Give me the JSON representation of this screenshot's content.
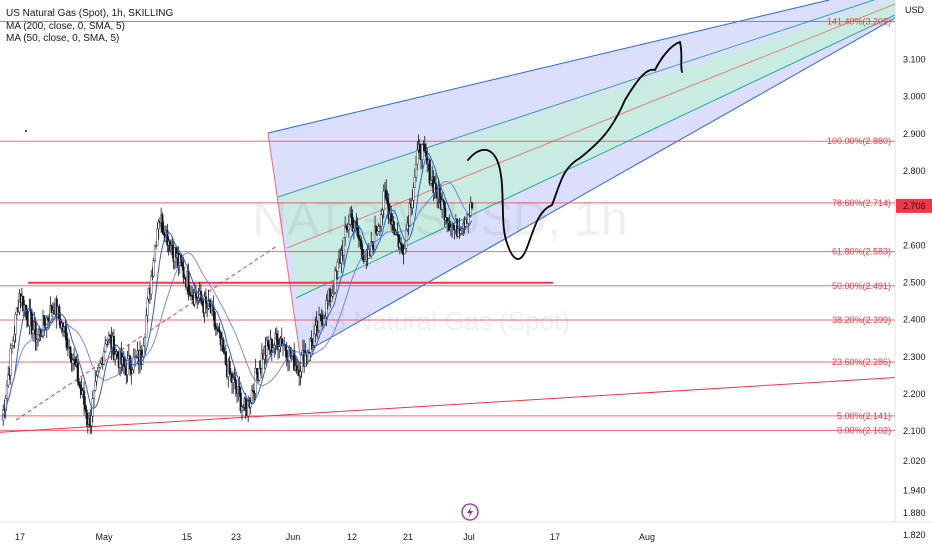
{
  "legend": {
    "title": "US Natural Gas (Spot), 1h, SKILLING",
    "ma200": "MA (200, close, 0, SMA, 5)",
    "ma50": "MA (50, close, 0, SMA, 5)"
  },
  "watermark": {
    "symbol": "NATGASUSD, 1h",
    "name": "US Natural Gas (Spot)"
  },
  "currency_label": "USD",
  "colors": {
    "fib_line": "#f23645",
    "channel_line": "#2962ff",
    "channel_fill_outer": "#d7dcfb",
    "channel_fill_inner": "#c7ecdf",
    "price_badge": "#f23645",
    "ma_line": "#2f5fd0",
    "candle": "#131722",
    "drawing": "#000000"
  },
  "chart_data": {
    "type": "line",
    "title": "US Natural Gas (Spot), 1h, SKILLING",
    "yaxis": {
      "min": 1.78,
      "max": 3.26,
      "unit": "USD",
      "ticks": [
        "3.100",
        "3.000",
        "2.900",
        "2.800",
        "2.700",
        "2.600",
        "2.500",
        "2.400",
        "2.300",
        "2.200",
        "2.100",
        "2.020",
        "1.940",
        "1.880",
        "1.820"
      ]
    },
    "xaxis": {
      "tick_labels": [
        "17",
        "May",
        "15",
        "23",
        "Jun",
        "12",
        "21",
        "Jul",
        "17",
        "Aug"
      ]
    },
    "current_price": "2.706",
    "fib_levels": [
      {
        "label": "141.40%(3.202)",
        "value": 3.202
      },
      {
        "label": "100.00%(2.880)",
        "value": 2.88
      },
      {
        "label": "78.60%(2.714)",
        "value": 2.714
      },
      {
        "label": "61.80%(2.583)",
        "value": 2.583
      },
      {
        "label": "50.00%(2.491)",
        "value": 2.491
      },
      {
        "label": "38.20%(2.399)",
        "value": 2.399
      },
      {
        "label": "23.60%(2.286)",
        "value": 2.286
      },
      {
        "label": "5.00%(2.141)",
        "value": 2.141
      },
      {
        "label": "0.00%(2.102)",
        "value": 2.102
      }
    ],
    "series": [
      {
        "name": "US Natural Gas (Spot)",
        "x": [
          "Apr 17",
          "Apr 21",
          "Apr 25",
          "Apr 29",
          "May 1",
          "May 5",
          "May 9",
          "May 13",
          "May 15",
          "May 19",
          "May 21",
          "May 23",
          "May 26",
          "May 30",
          "Jun 1",
          "Jun 4",
          "Jun 8",
          "Jun 10",
          "Jun 12",
          "Jun 14",
          "Jun 17",
          "Jun 19",
          "Jun 21",
          "Jun 23",
          "Jun 25",
          "Jun 27",
          "Jun 29",
          "Jul 1"
        ],
        "values": [
          2.13,
          2.47,
          2.35,
          2.44,
          2.31,
          2.12,
          2.36,
          2.27,
          2.3,
          2.68,
          2.57,
          2.47,
          2.42,
          2.26,
          2.15,
          2.31,
          2.35,
          2.27,
          2.36,
          2.48,
          2.68,
          2.55,
          2.73,
          2.58,
          2.87,
          2.74,
          2.64,
          2.7
        ]
      }
    ]
  }
}
